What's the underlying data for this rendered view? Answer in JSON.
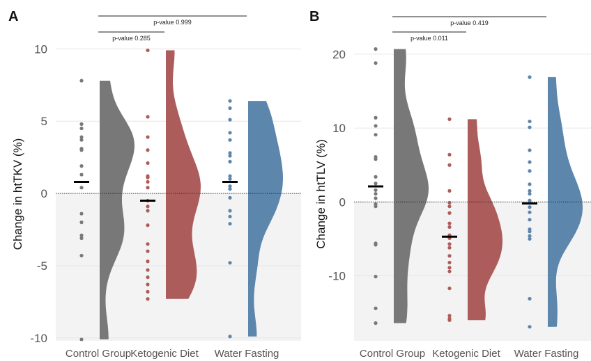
{
  "chart_data": [
    {
      "panel_label": "A",
      "type": "scatter",
      "ylabel": "Change in htTKV (%)",
      "ylim": [
        -10.2,
        10.4
      ],
      "yticks": [
        "-10",
        "-5",
        "0",
        "5",
        "10"
      ],
      "ytick_values": [
        -10,
        -5,
        0,
        5,
        10
      ],
      "reference_line": 0,
      "categories": [
        "Control Group",
        "Ketogenic Diet",
        "Water Fasting"
      ],
      "colors": [
        "#787878",
        "#ad5c5c",
        "#5d86ad"
      ],
      "means": [
        0.8,
        -0.5,
        0.8
      ],
      "points": [
        [
          7.8,
          4.8,
          4.5,
          3.9,
          3.7,
          3.1,
          3.0,
          1.9,
          1.3,
          0.4,
          -1.4,
          -2.0,
          -2.9,
          -3.1,
          -4.3,
          -10.1
        ],
        [
          9.9,
          5.3,
          3.9,
          3.0,
          2.1,
          1.2,
          1.1,
          0.8,
          0.4,
          -0.5,
          -0.9,
          -1.2,
          -2.2,
          -3.5,
          -4.0,
          -4.7,
          -5.3,
          -5.8,
          -6.3,
          -6.8,
          -7.3
        ],
        [
          6.4,
          5.9,
          5.1,
          4.2,
          3.7,
          2.8,
          2.6,
          2.2,
          1.2,
          1.0,
          0.5,
          0.3,
          -0.3,
          -1.2,
          -1.6,
          -2.1,
          -4.8,
          -9.9
        ]
      ],
      "comparisons": [
        {
          "text": "p-value 0.285",
          "groups": [
            "Control Group",
            "Ketogenic Diet"
          ]
        },
        {
          "text": "p-value 0.999",
          "groups": [
            "Control Group",
            "Water Fasting"
          ]
        }
      ]
    },
    {
      "panel_label": "B",
      "type": "scatter",
      "ylabel": "Change in htTLV (%)",
      "ylim": [
        -18.8,
        21.5
      ],
      "yticks": [
        "-10",
        "0",
        "10",
        "20"
      ],
      "ytick_values": [
        -10,
        0,
        10,
        20
      ],
      "reference_line": 0,
      "categories": [
        "Control Group",
        "Ketogenic Diet",
        "Water Fasting"
      ],
      "colors": [
        "#787878",
        "#ad5c5c",
        "#5d86ad"
      ],
      "means": [
        2.1,
        -4.7,
        -0.2
      ],
      "points": [
        [
          20.7,
          18.8,
          11.4,
          10.3,
          9.1,
          6.1,
          5.8,
          3.4,
          2.5,
          1.6,
          1.1,
          0.5,
          -0.3,
          -0.6,
          -5.6,
          -5.8,
          -10.1,
          -14.4,
          -16.4
        ],
        [
          11.2,
          6.4,
          5.0,
          1.5,
          -0.1,
          -0.6,
          -1.5,
          -2.9,
          -3.4,
          -4.5,
          -4.9,
          -5.7,
          -6.2,
          -7.3,
          -8.2,
          -8.9,
          -9.4,
          -11.7,
          -15.4,
          -15.8,
          -16.0
        ],
        [
          16.9,
          10.9,
          10.1,
          7.0,
          5.4,
          4.2,
          2.4,
          1.5,
          1.1,
          0.2,
          0.0,
          -0.7,
          -1.4,
          -2.4,
          -3.7,
          -4.0,
          -4.6,
          -5.0,
          -13.1,
          -16.9
        ]
      ],
      "comparisons": [
        {
          "text": "p-value 0.011",
          "groups": [
            "Control Group",
            "Ketogenic Diet"
          ]
        },
        {
          "text": "p-value 0.419",
          "groups": [
            "Control Group",
            "Water Fasting"
          ]
        }
      ]
    }
  ]
}
